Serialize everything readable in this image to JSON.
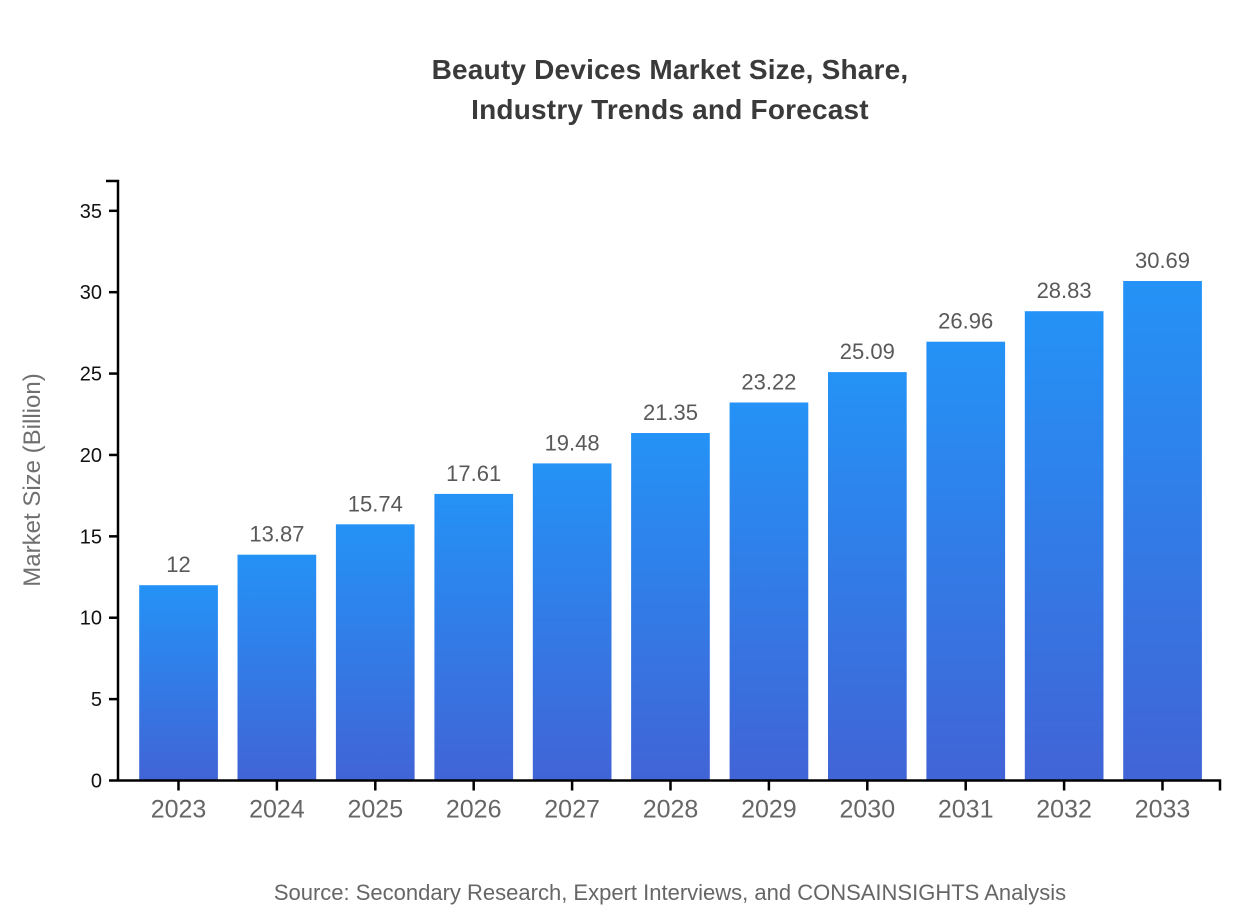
{
  "title": {
    "line1": "Beauty Devices Market Size, Share,",
    "line2": "Industry Trends and Forecast"
  },
  "source": {
    "text": "Source: Secondary Research, Expert Interviews, and CONSAINSIGHTS Analysis"
  },
  "chart_data": {
    "type": "bar",
    "title": "Beauty Devices Market Size, Share, Industry Trends and Forecast",
    "categories": [
      "2023",
      "2024",
      "2025",
      "2026",
      "2027",
      "2028",
      "2029",
      "2030",
      "2031",
      "2032",
      "2033"
    ],
    "values": [
      12,
      13.87,
      15.74,
      17.61,
      19.48,
      21.35,
      23.22,
      25.09,
      26.96,
      28.83,
      30.69
    ],
    "value_labels": [
      "12",
      "13.87",
      "15.74",
      "17.61",
      "19.48",
      "21.35",
      "23.22",
      "25.09",
      "26.96",
      "28.83",
      "30.69"
    ],
    "xlabel": "",
    "ylabel": "Market Size (Billion)",
    "yticks": [
      0,
      5,
      10,
      15,
      20,
      25,
      30,
      35
    ],
    "ylim": [
      0,
      36.9
    ],
    "grid": false,
    "legend": false,
    "bar_gradient_top": "#2492f6",
    "bar_gradient_bottom": "#4164d6",
    "colors": {
      "axis": "#000000",
      "ytick_label": "#111111",
      "xtick_label": "#666666",
      "value_label": "#595959",
      "ylabel": "#707070",
      "title": "#3a3a3a",
      "source": "#666666",
      "background": "#ffffff"
    }
  }
}
